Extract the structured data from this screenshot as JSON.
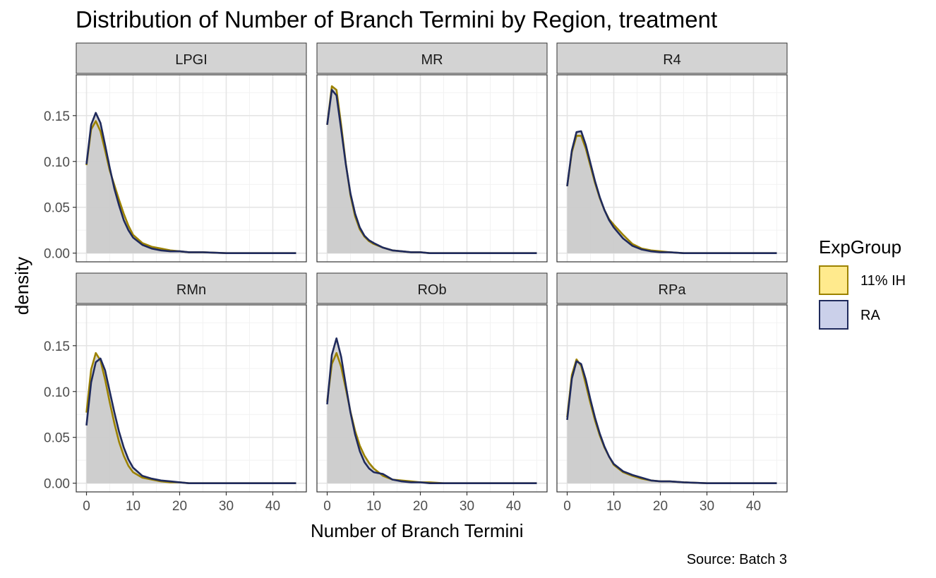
{
  "chart": {
    "title": "Distribution of Number of Branch Termini by Region, treatment",
    "xlabel": "Number of Branch Termini",
    "ylabel": "density",
    "caption": "Source: Batch 3"
  },
  "legend": {
    "title": "ExpGroup",
    "items": [
      {
        "label": "11% IH",
        "fill": "#FFEA8D",
        "stroke": "#9C8200"
      },
      {
        "label": "RA",
        "fill": "#CBD0EA",
        "stroke": "#1F2A5C"
      }
    ]
  },
  "colors": {
    "ih_line": "#9C8200",
    "ra_line": "#1F2A5C",
    "area_fill": "#CCCCCC",
    "strip_bg": "#D3D3D3",
    "grid_major": "#E5E5E5",
    "grid_minor": "#F2F2F2",
    "panel_border": "#333333"
  },
  "chart_data": {
    "type": "area",
    "facet_layout": {
      "rows": 2,
      "cols": 3
    },
    "xlim": [
      -2.2,
      47.2
    ],
    "ylim": [
      -0.0095,
      0.1945
    ],
    "x_ticks": [
      0,
      10,
      20,
      30,
      40
    ],
    "x_tick_labels": [
      "0",
      "10",
      "20",
      "30",
      "40"
    ],
    "y_ticks": [
      0.0,
      0.05,
      0.1,
      0.15
    ],
    "y_tick_labels": [
      "0.00",
      "0.05",
      "0.10",
      "0.15"
    ],
    "grid": true,
    "legend_position": "right",
    "x": [
      0,
      1,
      2,
      3,
      4,
      5,
      6,
      7,
      8,
      9,
      10,
      12,
      14,
      16,
      18,
      20,
      22,
      25,
      30,
      35,
      40,
      45
    ],
    "panels": [
      {
        "label": "LPGI",
        "series": [
          {
            "name": "11% IH",
            "values": [
              0.096,
              0.135,
              0.144,
              0.133,
              0.112,
              0.09,
              0.074,
              0.058,
              0.043,
              0.03,
              0.02,
              0.011,
              0.007,
              0.005,
              0.003,
              0.002,
              0.001,
              0.001,
              0.0,
              0.0,
              0.0,
              0.0
            ]
          },
          {
            "name": "RA",
            "values": [
              0.097,
              0.14,
              0.153,
              0.142,
              0.118,
              0.093,
              0.07,
              0.052,
              0.036,
              0.025,
              0.017,
              0.009,
              0.005,
              0.003,
              0.002,
              0.002,
              0.001,
              0.001,
              0.0,
              0.0,
              0.0,
              0.0
            ]
          }
        ]
      },
      {
        "label": "MR",
        "series": [
          {
            "name": "11% IH",
            "values": [
              0.14,
              0.182,
              0.178,
              0.14,
              0.098,
              0.063,
              0.04,
              0.026,
              0.018,
              0.013,
              0.01,
              0.006,
              0.003,
              0.002,
              0.001,
              0.001,
              0.0,
              0.0,
              0.0,
              0.0,
              0.0,
              0.0
            ]
          },
          {
            "name": "RA",
            "values": [
              0.14,
              0.178,
              0.172,
              0.135,
              0.097,
              0.065,
              0.043,
              0.028,
              0.019,
              0.014,
              0.011,
              0.006,
              0.003,
              0.002,
              0.001,
              0.001,
              0.0,
              0.0,
              0.0,
              0.0,
              0.0,
              0.0
            ]
          }
        ]
      },
      {
        "label": "R4",
        "series": [
          {
            "name": "11% IH",
            "values": [
              0.073,
              0.11,
              0.128,
              0.128,
              0.114,
              0.095,
              0.076,
              0.06,
              0.047,
              0.037,
              0.031,
              0.02,
              0.01,
              0.005,
              0.003,
              0.002,
              0.001,
              0.0,
              0.0,
              0.0,
              0.0,
              0.0
            ]
          },
          {
            "name": "RA",
            "values": [
              0.073,
              0.112,
              0.132,
              0.133,
              0.118,
              0.098,
              0.078,
              0.061,
              0.047,
              0.036,
              0.028,
              0.016,
              0.008,
              0.004,
              0.002,
              0.001,
              0.001,
              0.0,
              0.0,
              0.0,
              0.0,
              0.0
            ]
          }
        ]
      },
      {
        "label": "RMn",
        "series": [
          {
            "name": "11% IH",
            "values": [
              0.077,
              0.124,
              0.142,
              0.134,
              0.113,
              0.088,
              0.065,
              0.045,
              0.03,
              0.019,
              0.012,
              0.006,
              0.004,
              0.002,
              0.001,
              0.001,
              0.0,
              0.0,
              0.0,
              0.0,
              0.0,
              0.0
            ]
          },
          {
            "name": "RA",
            "values": [
              0.063,
              0.11,
              0.132,
              0.136,
              0.123,
              0.1,
              0.077,
              0.056,
              0.039,
              0.026,
              0.017,
              0.008,
              0.005,
              0.003,
              0.002,
              0.001,
              0.0,
              0.0,
              0.0,
              0.0,
              0.0,
              0.0
            ]
          }
        ]
      },
      {
        "label": "ROb",
        "series": [
          {
            "name": "11% IH",
            "values": [
              0.089,
              0.13,
              0.142,
              0.127,
              0.103,
              0.078,
              0.057,
              0.041,
              0.03,
              0.022,
              0.016,
              0.008,
              0.004,
              0.003,
              0.002,
              0.001,
              0.001,
              0.0,
              0.0,
              0.0,
              0.0,
              0.0
            ]
          },
          {
            "name": "RA",
            "values": [
              0.086,
              0.14,
              0.158,
              0.138,
              0.107,
              0.077,
              0.053,
              0.035,
              0.023,
              0.016,
              0.012,
              0.01,
              0.004,
              0.002,
              0.001,
              0.001,
              0.0,
              0.0,
              0.0,
              0.0,
              0.0,
              0.0
            ]
          }
        ]
      },
      {
        "label": "RPa",
        "series": [
          {
            "name": "11% IH",
            "values": [
              0.072,
              0.118,
              0.135,
              0.128,
              0.108,
              0.087,
              0.068,
              0.052,
              0.039,
              0.029,
              0.02,
              0.012,
              0.008,
              0.005,
              0.003,
              0.002,
              0.002,
              0.001,
              0.0,
              0.0,
              0.0,
              0.0
            ]
          },
          {
            "name": "RA",
            "values": [
              0.069,
              0.114,
              0.133,
              0.13,
              0.113,
              0.091,
              0.071,
              0.054,
              0.04,
              0.029,
              0.021,
              0.013,
              0.009,
              0.006,
              0.003,
              0.002,
              0.002,
              0.001,
              0.0,
              0.0,
              0.0,
              0.0
            ]
          }
        ]
      }
    ]
  }
}
